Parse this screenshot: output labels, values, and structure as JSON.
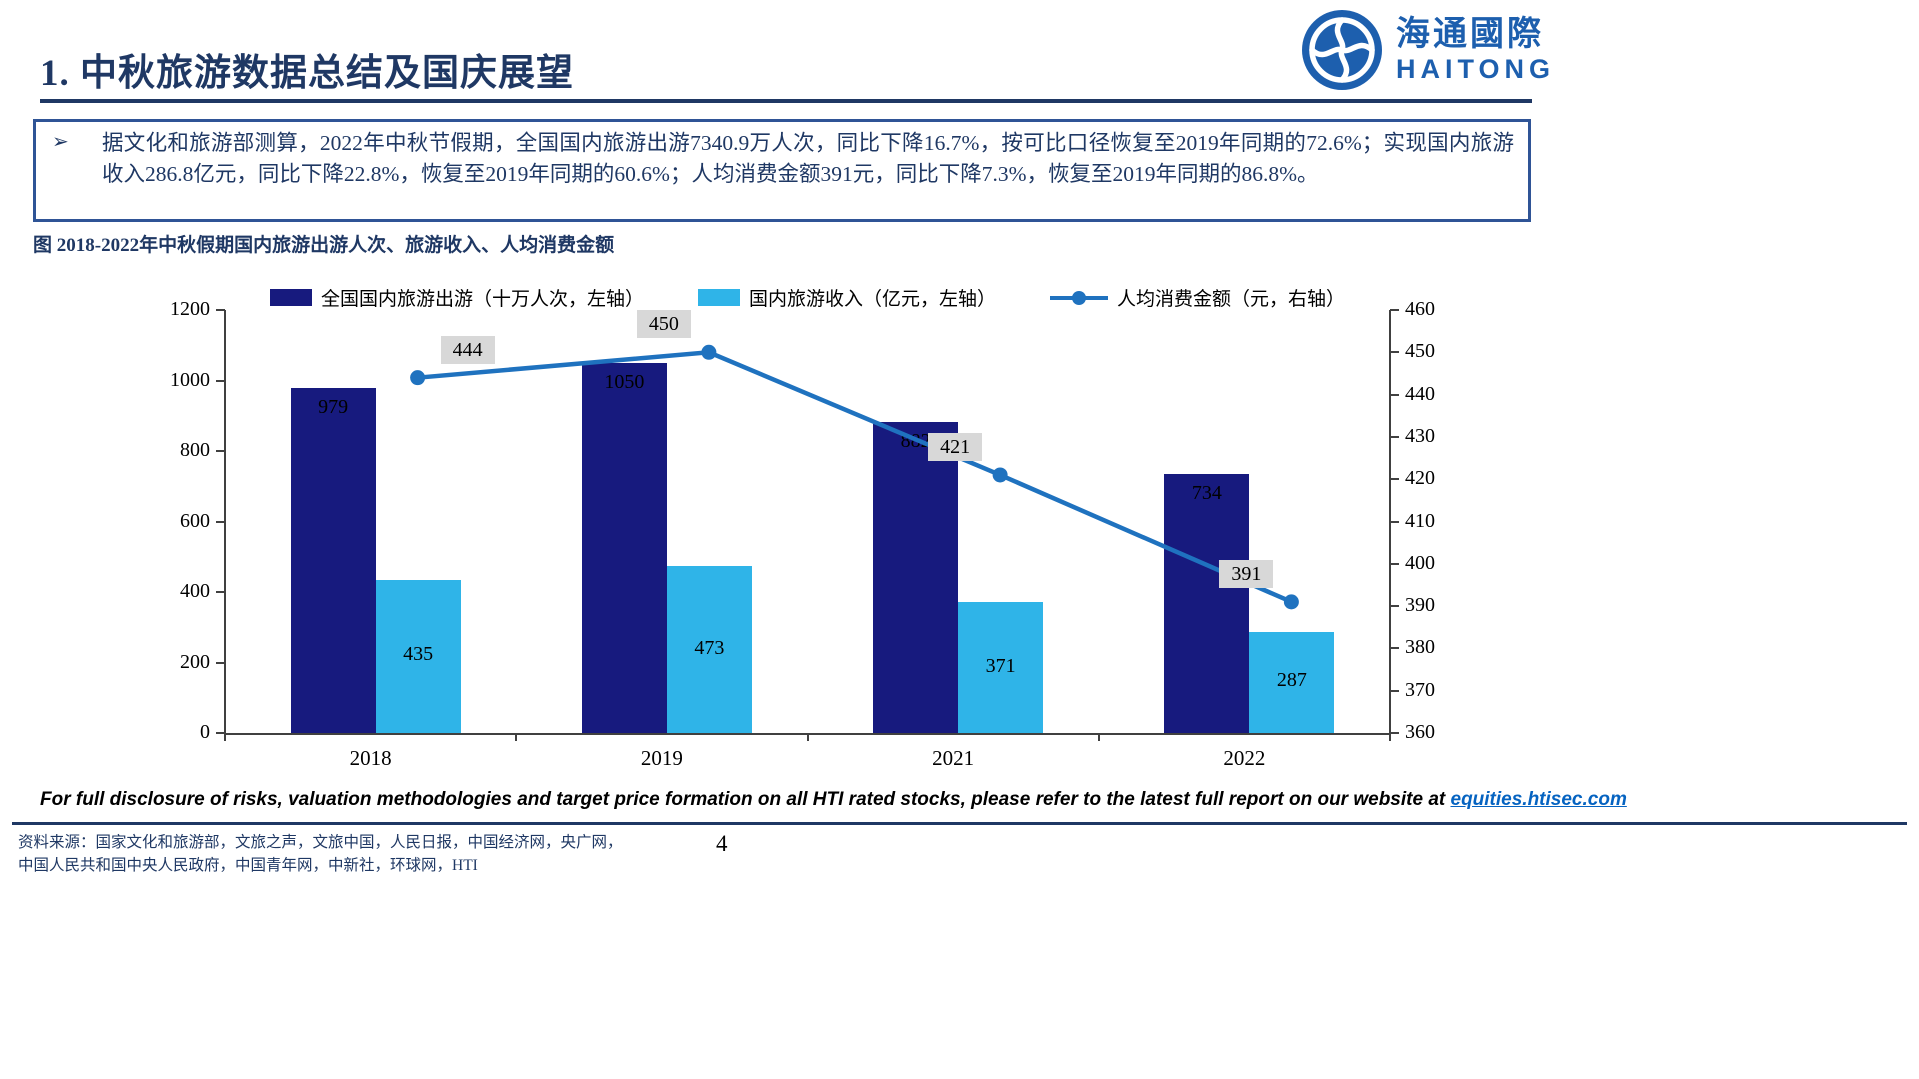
{
  "header": {
    "title": "1. 中秋旅游数据总结及国庆展望",
    "logo_cn": "海通國際",
    "logo_en": "HAITONG"
  },
  "summary": {
    "bullet": "➢",
    "text": "据文化和旅游部测算，2022年中秋节假期，全国国内旅游出游7340.9万人次，同比下降16.7%，按可比口径恢复至2019年同期的72.6%；实现国内旅游收入286.8亿元，同比下降22.8%，恢复至2019年同期的60.6%；人均消费金额391元，同比下降7.3%，恢复至2019年同期的86.8%。"
  },
  "figure": {
    "caption": "图 2018-2022年中秋假期国内旅游出游人次、旅游收入、人均消费金额"
  },
  "chart_data": {
    "type": "combo",
    "categories": [
      "2018",
      "2019",
      "2021",
      "2022"
    ],
    "series": [
      {
        "name": "全国国内旅游出游（十万人次，左轴）",
        "type": "bar",
        "axis": "left",
        "color": "#171A7E",
        "values": [
          979,
          1050,
          882,
          734
        ]
      },
      {
        "name": "国内旅游收入（亿元，左轴）",
        "type": "bar",
        "axis": "left",
        "color": "#2FB4E8",
        "values": [
          435,
          473,
          371,
          287
        ]
      },
      {
        "name": "人均消费金额（元，右轴）",
        "type": "line",
        "axis": "right",
        "color": "#1F72BF",
        "values": [
          444,
          450,
          421,
          391
        ]
      }
    ],
    "left_axis": {
      "min": 0,
      "max": 1200,
      "step": 200
    },
    "right_axis": {
      "min": 360,
      "max": 460,
      "step": 10
    },
    "legend_position": "top",
    "grid": false,
    "line_label_bg": "#D8D8D8"
  },
  "footer": {
    "disclosure_prefix": "For full disclosure of risks, valuation methodologies and target price formation on all HTI rated stocks, please refer to the latest full report on our website at ",
    "disclosure_link": "equities.htisec.com",
    "source_line1": "资料来源：国家文化和旅游部，文旅之声，文旅中国，人民日报，中国经济网，央广网，",
    "source_line2": "中国人民共和国中央人民政府，中国青年网，中新社，环球网，HTI",
    "page_number": "4"
  },
  "colors": {
    "navy_text": "#1F3864",
    "box_border": "#2F5496",
    "link_blue": "#0563C1",
    "logo_blue": "#1D5FAE"
  }
}
